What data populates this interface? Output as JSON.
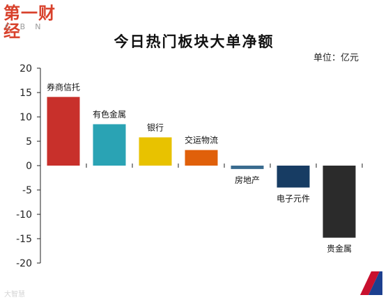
{
  "header": {
    "logo_main": "第一财经",
    "logo_sub": "CBN",
    "title": "今日热门板块大单净额",
    "unit": "单位：亿元"
  },
  "footer": {
    "watermark": "大智慧"
  },
  "colors": {
    "axis": "#222222",
    "logo": "#d8412b",
    "corner_red": "#c8102e",
    "corner_blue": "#1c3f8f"
  },
  "icons": {
    "corner_logo": "cbn-corner-logo"
  },
  "chart_data": {
    "type": "bar",
    "title": "今日热门板块大单净额",
    "categories": [
      "券商信托",
      "有色金属",
      "银行",
      "交运物流",
      "房地产",
      "电子元件",
      "贵金属"
    ],
    "values": [
      14.1,
      8.5,
      5.8,
      3.2,
      -0.7,
      -4.5,
      -14.8
    ],
    "colors": [
      "#c8302b",
      "#2aa3b4",
      "#e8c200",
      "#e0600a",
      "#3a6b8f",
      "#173c63",
      "#2b2b2b"
    ],
    "ylim": [
      -20,
      20
    ],
    "yticks": [
      20,
      15,
      10,
      5,
      0,
      -5,
      -10,
      -15,
      -20
    ],
    "xlabel": "",
    "ylabel": "单位：亿元",
    "grid": false,
    "legend": "none"
  }
}
